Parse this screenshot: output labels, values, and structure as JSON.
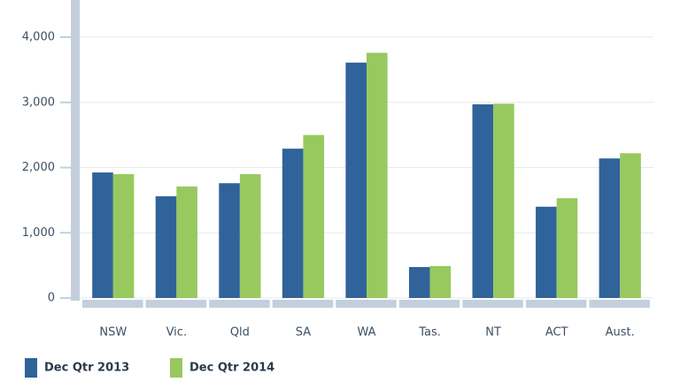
{
  "chart_data": {
    "type": "bar",
    "categories": [
      "NSW",
      "Vic.",
      "Qld",
      "SA",
      "WA",
      "Tas.",
      "NT",
      "ACT",
      "Aust."
    ],
    "series": [
      {
        "name": "Dec Qtr 2013",
        "color": "#30639a",
        "values": [
          1925,
          1560,
          1760,
          2290,
          3610,
          475,
          2970,
          1400,
          2140
        ]
      },
      {
        "name": "Dec Qtr 2014",
        "color": "#97c95f",
        "values": [
          1900,
          1710,
          1900,
          2500,
          3760,
          490,
          2980,
          1530,
          2220
        ]
      }
    ],
    "ylim": [
      0,
      4570
    ],
    "yticks": [
      0,
      {
        "value": 1000,
        "label": "1,000"
      },
      {
        "value": 2000,
        "label": "2,000"
      },
      {
        "value": 3000,
        "label": "3,000"
      },
      {
        "value": 4000,
        "label": "4,000"
      }
    ],
    "grid": true
  }
}
